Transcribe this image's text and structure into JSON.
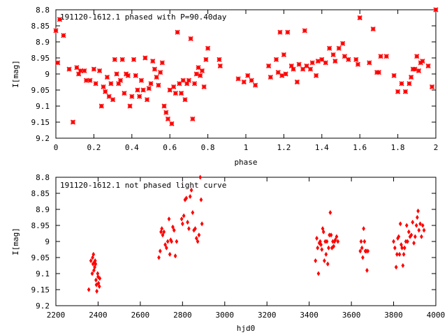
{
  "chart_data": [
    {
      "type": "scatter",
      "title": "191120-1612.1 phased with P=90.40day",
      "xlabel": "phase",
      "ylabel": "I[mag]",
      "xlim": [
        0,
        2
      ],
      "ylim": [
        8.8,
        9.2
      ],
      "y_inverted": true,
      "grid": false,
      "marker": "star",
      "color": "#ff0000",
      "xticks": [
        "0",
        "0.2",
        "0.4",
        "0.6",
        "0.8",
        "1",
        "1.2",
        "1.4",
        "1.6",
        "1.8",
        "2"
      ],
      "xtick_values": [
        0,
        0.2,
        0.4,
        0.6,
        0.8,
        1.0,
        1.2,
        1.4,
        1.6,
        1.8,
        2.0
      ],
      "yticks": [
        "8.8",
        "8.85",
        "8.9",
        "8.95",
        "9",
        "9.05",
        "9.1",
        "9.15",
        "9.2"
      ],
      "ytick_values": [
        8.8,
        8.85,
        8.9,
        8.95,
        9.0,
        9.05,
        9.1,
        9.15,
        9.2
      ],
      "points": [
        [
          0.0,
          8.865
        ],
        [
          0.01,
          8.965
        ],
        [
          0.02,
          8.83
        ],
        [
          0.04,
          8.88
        ],
        [
          0.07,
          8.985
        ],
        [
          0.09,
          9.15
        ],
        [
          0.11,
          8.98
        ],
        [
          0.12,
          9.0
        ],
        [
          0.13,
          8.99
        ],
        [
          0.15,
          8.99
        ],
        [
          0.16,
          9.02
        ],
        [
          0.18,
          9.02
        ],
        [
          0.2,
          8.985
        ],
        [
          0.21,
          9.03
        ],
        [
          0.23,
          8.99
        ],
        [
          0.24,
          9.1
        ],
        [
          0.25,
          9.04
        ],
        [
          0.26,
          9.055
        ],
        [
          0.27,
          9.01
        ],
        [
          0.28,
          9.07
        ],
        [
          0.29,
          9.03
        ],
        [
          0.3,
          9.08
        ],
        [
          0.31,
          8.955
        ],
        [
          0.32,
          9.0
        ],
        [
          0.33,
          9.03
        ],
        [
          0.34,
          9.02
        ],
        [
          0.35,
          8.955
        ],
        [
          0.36,
          9.06
        ],
        [
          0.37,
          9.0
        ],
        [
          0.38,
          9.005
        ],
        [
          0.39,
          9.1
        ],
        [
          0.4,
          9.07
        ],
        [
          0.41,
          8.955
        ],
        [
          0.42,
          9.005
        ],
        [
          0.43,
          9.05
        ],
        [
          0.44,
          9.07
        ],
        [
          0.45,
          9.02
        ],
        [
          0.46,
          9.05
        ],
        [
          0.47,
          8.95
        ],
        [
          0.48,
          9.08
        ],
        [
          0.49,
          9.045
        ],
        [
          0.5,
          9.03
        ],
        [
          0.51,
          8.96
        ],
        [
          0.52,
          8.985
        ],
        [
          0.53,
          9.01
        ],
        [
          0.54,
          9.035
        ],
        [
          0.55,
          8.995
        ],
        [
          0.56,
          8.965
        ],
        [
          0.57,
          9.1
        ],
        [
          0.58,
          9.12
        ],
        [
          0.59,
          9.14
        ],
        [
          0.6,
          9.05
        ],
        [
          0.61,
          9.155
        ],
        [
          0.62,
          9.04
        ],
        [
          0.63,
          9.06
        ],
        [
          0.64,
          8.87
        ],
        [
          0.65,
          9.03
        ],
        [
          0.66,
          9.06
        ],
        [
          0.67,
          9.02
        ],
        [
          0.68,
          9.08
        ],
        [
          0.69,
          9.03
        ],
        [
          0.7,
          9.02
        ],
        [
          0.71,
          8.89
        ],
        [
          0.72,
          9.14
        ],
        [
          0.73,
          9.03
        ],
        [
          0.74,
          9.0
        ],
        [
          0.75,
          8.98
        ],
        [
          0.76,
          9.005
        ],
        [
          0.77,
          8.99
        ],
        [
          0.78,
          9.04
        ],
        [
          0.79,
          8.955
        ],
        [
          0.8,
          8.92
        ],
        [
          0.86,
          8.955
        ],
        [
          0.865,
          8.975
        ],
        [
          0.96,
          9.015
        ],
        [
          0.99,
          9.025
        ],
        [
          1.01,
          9.005
        ],
        [
          1.03,
          9.02
        ],
        [
          1.05,
          9.035
        ],
        [
          1.12,
          8.975
        ],
        [
          1.13,
          9.01
        ],
        [
          1.16,
          8.955
        ],
        [
          1.17,
          8.995
        ],
        [
          1.18,
          8.87
        ],
        [
          1.19,
          9.005
        ],
        [
          1.2,
          8.94
        ],
        [
          1.21,
          9.0
        ],
        [
          1.22,
          8.87
        ],
        [
          1.24,
          8.975
        ],
        [
          1.25,
          8.985
        ],
        [
          1.27,
          9.025
        ],
        [
          1.28,
          8.97
        ],
        [
          1.3,
          8.985
        ],
        [
          1.31,
          8.865
        ],
        [
          1.32,
          8.975
        ],
        [
          1.34,
          8.985
        ],
        [
          1.35,
          8.965
        ],
        [
          1.37,
          9.005
        ],
        [
          1.38,
          8.96
        ],
        [
          1.4,
          8.955
        ],
        [
          1.42,
          8.965
        ],
        [
          1.44,
          8.92
        ],
        [
          1.46,
          8.94
        ],
        [
          1.47,
          8.96
        ],
        [
          1.49,
          8.92
        ],
        [
          1.51,
          8.905
        ],
        [
          1.52,
          8.945
        ],
        [
          1.54,
          8.955
        ],
        [
          1.58,
          8.955
        ],
        [
          1.59,
          8.97
        ],
        [
          1.6,
          8.825
        ],
        [
          1.65,
          8.965
        ],
        [
          1.67,
          8.86
        ],
        [
          1.69,
          8.995
        ],
        [
          1.7,
          8.995
        ],
        [
          1.71,
          8.945
        ],
        [
          1.74,
          8.945
        ],
        [
          1.78,
          9.005
        ],
        [
          1.8,
          9.055
        ],
        [
          1.82,
          9.03
        ],
        [
          1.84,
          9.055
        ],
        [
          1.86,
          9.03
        ],
        [
          1.87,
          9.01
        ],
        [
          1.88,
          8.985
        ],
        [
          1.89,
          8.985
        ],
        [
          1.9,
          8.945
        ],
        [
          1.91,
          8.99
        ],
        [
          1.92,
          8.965
        ],
        [
          1.93,
          8.96
        ],
        [
          1.96,
          8.975
        ],
        [
          1.98,
          9.04
        ],
        [
          2.0,
          8.8
        ]
      ]
    },
    {
      "type": "scatter",
      "title": "191120-1612.1 not phased light curve",
      "xlabel": "hjd0",
      "ylabel": "I[mag]",
      "xlim": [
        2200,
        4000
      ],
      "ylim": [
        8.8,
        9.2
      ],
      "y_inverted": true,
      "grid": false,
      "marker": "diamond",
      "color": "#ff0000",
      "xticks": [
        "2200",
        "2400",
        "2600",
        "2800",
        "3000",
        "3200",
        "3400",
        "3600",
        "3800",
        "4000"
      ],
      "xtick_values": [
        2200,
        2400,
        2600,
        2800,
        3000,
        3200,
        3400,
        3600,
        3800,
        4000
      ],
      "yticks": [
        "8.8",
        "8.85",
        "8.9",
        "8.95",
        "9",
        "9.05",
        "9.1",
        "9.15",
        "9.2"
      ],
      "ytick_values": [
        8.8,
        8.85,
        8.9,
        8.95,
        9.0,
        9.05,
        9.1,
        9.15,
        9.2
      ],
      "points": [
        [
          2356,
          9.15
        ],
        [
          2366,
          9.06
        ],
        [
          2372,
          9.1
        ],
        [
          2374,
          9.05
        ],
        [
          2376,
          9.07
        ],
        [
          2378,
          9.04
        ],
        [
          2380,
          9.09
        ],
        [
          2382,
          9.065
        ],
        [
          2384,
          9.08
        ],
        [
          2386,
          9.06
        ],
        [
          2388,
          9.07
        ],
        [
          2390,
          9.12
        ],
        [
          2392,
          9.135
        ],
        [
          2394,
          9.155
        ],
        [
          2398,
          9.1
        ],
        [
          2400,
          9.11
        ],
        [
          2402,
          9.13
        ],
        [
          2406,
          9.14
        ],
        [
          2408,
          9.115
        ],
        [
          2688,
          9.05
        ],
        [
          2694,
          9.03
        ],
        [
          2698,
          8.97
        ],
        [
          2702,
          8.96
        ],
        [
          2706,
          8.98
        ],
        [
          2712,
          8.97
        ],
        [
          2718,
          9.01
        ],
        [
          2724,
          9.02
        ],
        [
          2730,
          9.0
        ],
        [
          2736,
          8.93
        ],
        [
          2740,
          9.04
        ],
        [
          2744,
          8.995
        ],
        [
          2748,
          9.0
        ],
        [
          2754,
          8.955
        ],
        [
          2760,
          8.965
        ],
        [
          2766,
          9.045
        ],
        [
          2772,
          9.0
        ],
        [
          2796,
          8.93
        ],
        [
          2800,
          8.945
        ],
        [
          2806,
          8.92
        ],
        [
          2812,
          8.87
        ],
        [
          2818,
          8.865
        ],
        [
          2824,
          8.94
        ],
        [
          2830,
          8.96
        ],
        [
          2836,
          8.86
        ],
        [
          2842,
          8.84
        ],
        [
          2848,
          8.91
        ],
        [
          2854,
          8.965
        ],
        [
          2860,
          8.96
        ],
        [
          2866,
          8.99
        ],
        [
          2872,
          9.0
        ],
        [
          2878,
          8.98
        ],
        [
          2884,
          8.8
        ],
        [
          2888,
          8.87
        ],
        [
          2892,
          8.945
        ],
        [
          3430,
          9.06
        ],
        [
          3436,
          8.99
        ],
        [
          3440,
          9.02
        ],
        [
          3444,
          9.1
        ],
        [
          3448,
          9.005
        ],
        [
          3452,
          9.0
        ],
        [
          3456,
          9.01
        ],
        [
          3460,
          9.025
        ],
        [
          3464,
          8.96
        ],
        [
          3468,
          8.97
        ],
        [
          3472,
          9.06
        ],
        [
          3476,
          9.0
        ],
        [
          3480,
          9.04
        ],
        [
          3484,
          9.0
        ],
        [
          3488,
          9.07
        ],
        [
          3492,
          9.02
        ],
        [
          3496,
          8.98
        ],
        [
          3500,
          8.91
        ],
        [
          3504,
          8.98
        ],
        [
          3508,
          9.02
        ],
        [
          3512,
          9.0
        ],
        [
          3516,
          9.015
        ],
        [
          3520,
          9.0
        ],
        [
          3524,
          8.995
        ],
        [
          3530,
          8.985
        ],
        [
          3536,
          9.0
        ],
        [
          3642,
          9.03
        ],
        [
          3646,
          9.0
        ],
        [
          3650,
          9.02
        ],
        [
          3654,
          9.05
        ],
        [
          3658,
          8.96
        ],
        [
          3662,
          9.0
        ],
        [
          3666,
          9.03
        ],
        [
          3670,
          9.03
        ],
        [
          3674,
          9.09
        ],
        [
          3678,
          9.03
        ],
        [
          3800,
          9.0
        ],
        [
          3806,
          9.02
        ],
        [
          3812,
          9.08
        ],
        [
          3816,
          9.04
        ],
        [
          3820,
          8.99
        ],
        [
          3824,
          8.985
        ],
        [
          3828,
          9.04
        ],
        [
          3832,
          8.945
        ],
        [
          3836,
          9.01
        ],
        [
          3840,
          9.02
        ],
        [
          3844,
          9.075
        ],
        [
          3848,
          9.04
        ],
        [
          3852,
          9.02
        ],
        [
          3858,
          9.0
        ],
        [
          3862,
          8.95
        ],
        [
          3866,
          9.0
        ],
        [
          3872,
          8.97
        ],
        [
          3878,
          8.985
        ],
        [
          3884,
          8.98
        ],
        [
          3890,
          8.94
        ],
        [
          3896,
          9.005
        ],
        [
          3902,
          8.985
        ],
        [
          3908,
          8.95
        ],
        [
          3912,
          8.925
        ],
        [
          3916,
          8.905
        ],
        [
          3920,
          8.965
        ],
        [
          3926,
          8.945
        ],
        [
          3932,
          8.985
        ],
        [
          3938,
          8.95
        ],
        [
          3944,
          8.965
        ]
      ]
    }
  ]
}
